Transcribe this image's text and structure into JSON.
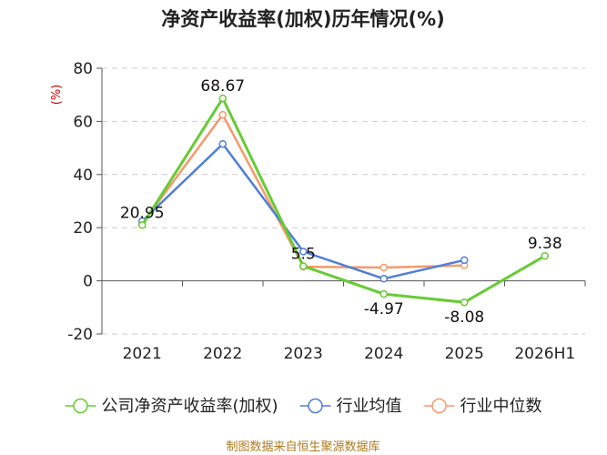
{
  "chart_data": {
    "type": "line",
    "title": "净资产收益率(加权)历年情况(%)",
    "ylabel": "(%)",
    "xlabel": "",
    "categories": [
      "2021",
      "2022",
      "2023",
      "2024",
      "2025",
      "2026H1"
    ],
    "ylim": [
      -20,
      80
    ],
    "yticks": [
      -20,
      0,
      20,
      40,
      60,
      80
    ],
    "grid": "horizontal-dashed",
    "legend_position": "bottom",
    "series": [
      {
        "name": "公司净资产收益率(加权)",
        "color": "#66cc33",
        "values": [
          20.95,
          68.67,
          5.5,
          -4.97,
          -8.08,
          9.38
        ],
        "labels": [
          "20.95",
          "68.67",
          "5.5",
          "-4.97",
          "-8.08",
          "9.38"
        ]
      },
      {
        "name": "行业均值",
        "color": "#4f7fd6",
        "values": [
          22.5,
          51.5,
          11.0,
          0.8,
          7.8,
          null
        ]
      },
      {
        "name": "行业中位数",
        "color": "#f59a6a",
        "values": [
          21.5,
          62.5,
          5.3,
          5.0,
          5.8,
          null
        ]
      }
    ],
    "source": "制图数据来自恒生聚源数据库"
  }
}
